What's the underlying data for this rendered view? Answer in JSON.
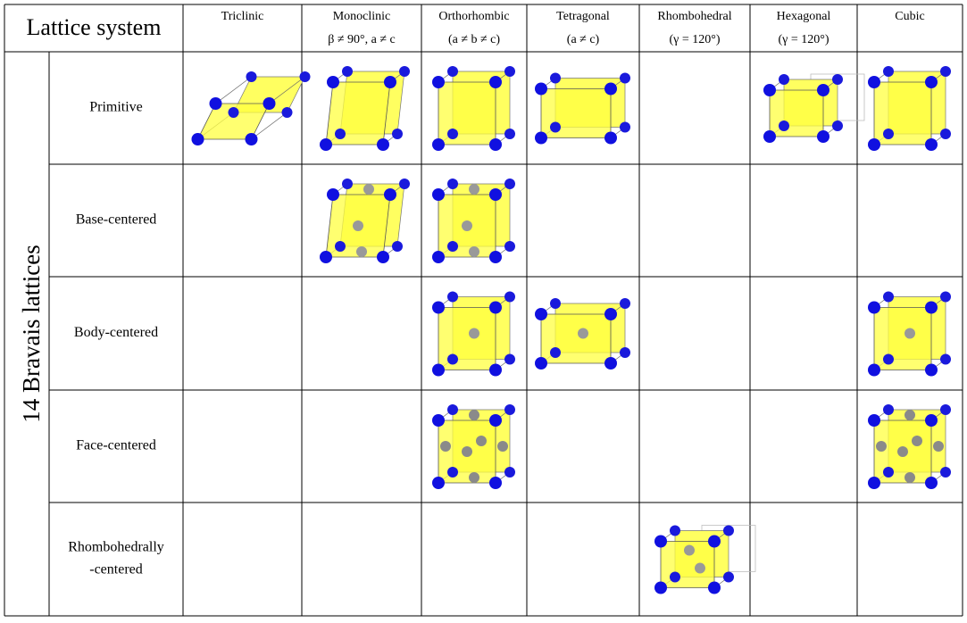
{
  "header": {
    "title": "Lattice system",
    "columns": [
      {
        "lines": [
          "Triclinic"
        ]
      },
      {
        "lines": [
          "Monoclinic",
          "β ≠ 90°, a ≠ c"
        ]
      },
      {
        "lines": [
          "Orthorhombic",
          "(a ≠ b ≠ c)"
        ]
      },
      {
        "lines": [
          "Tetragonal",
          "(a ≠ c)"
        ]
      },
      {
        "lines": [
          "Rhombohedral",
          "(γ = 120°)"
        ]
      },
      {
        "lines": [
          "Hexagonal",
          "(γ = 120°)"
        ]
      },
      {
        "lines": [
          "Cubic"
        ]
      }
    ]
  },
  "side_label": "14 Bravais lattices",
  "rows": [
    {
      "lines": [
        "Primitive"
      ]
    },
    {
      "lines": [
        "Base-centered"
      ]
    },
    {
      "lines": [
        "Body-centered"
      ]
    },
    {
      "lines": [
        "Face-centered"
      ]
    },
    {
      "lines": [
        "Rhombohedrally",
        "-centered"
      ]
    }
  ]
}
